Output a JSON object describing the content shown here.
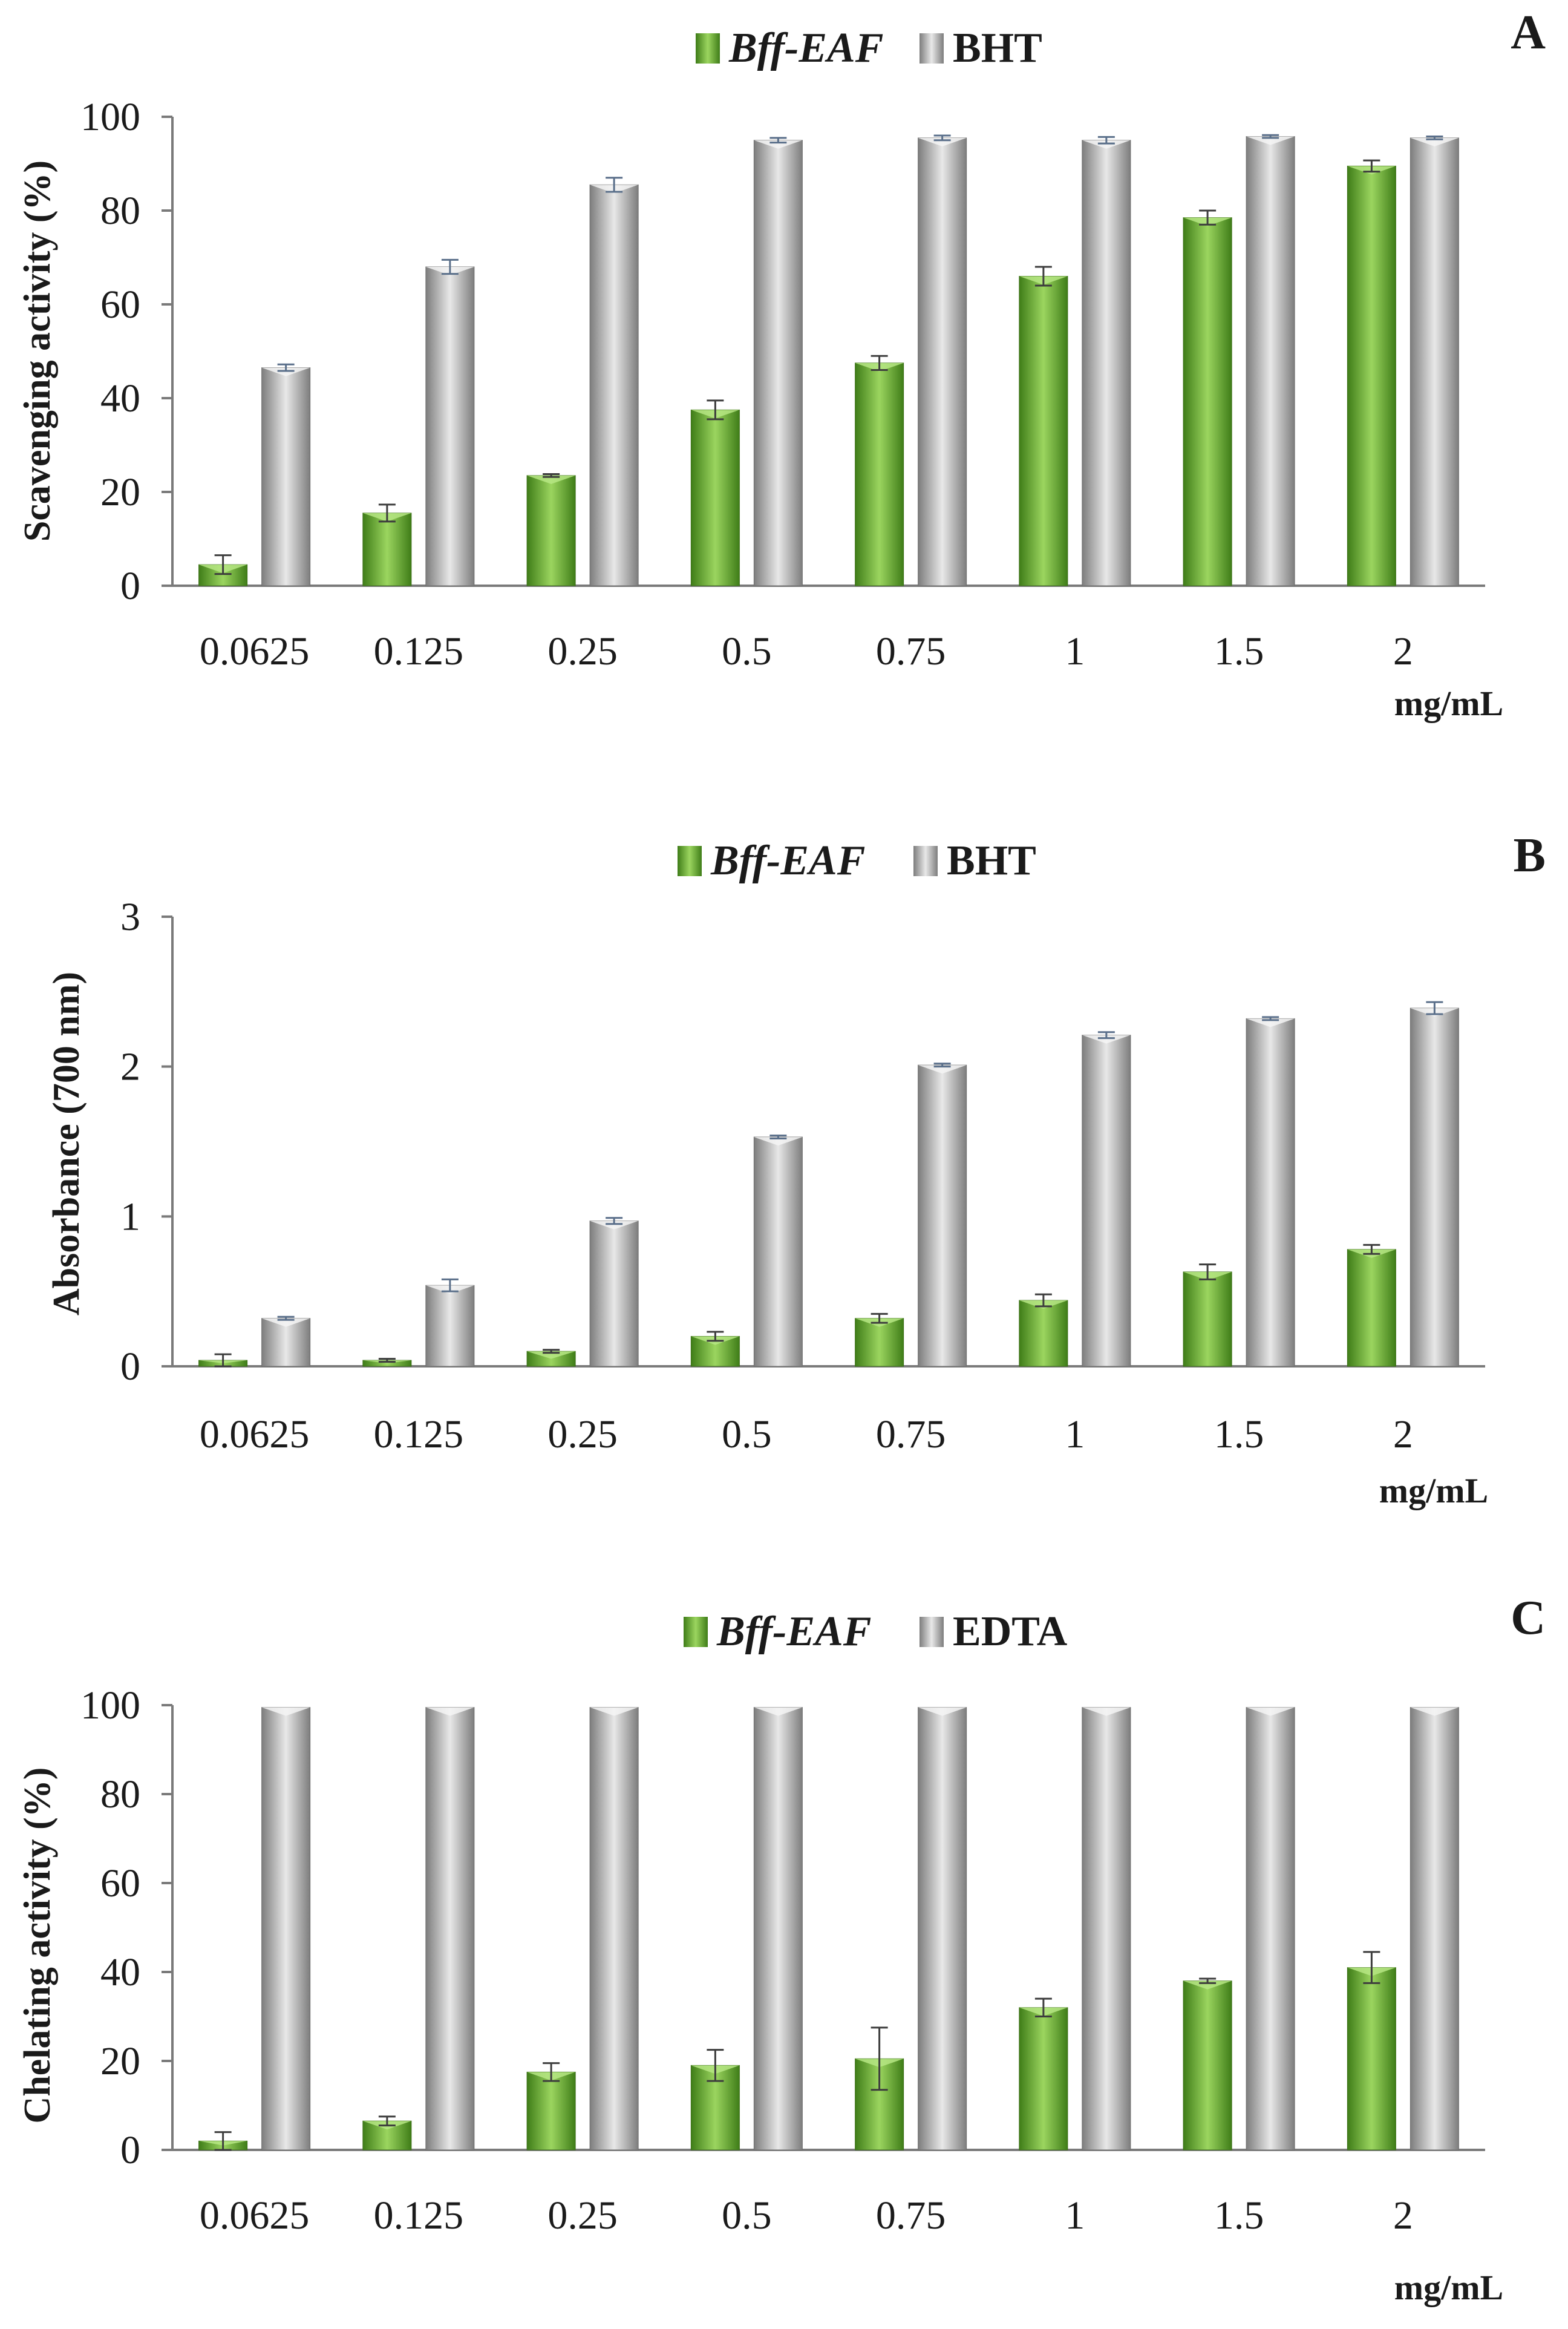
{
  "colors": {
    "green": "#6fb33a",
    "gray": "#b8b8b8",
    "axis": "#7a7a7a",
    "err": "#333333"
  },
  "chart_data": [
    {
      "type": "bar",
      "panel_label": "A",
      "categories": [
        "0.0625",
        "0.125",
        "0.25",
        "0.5",
        "0.75",
        "1",
        "1.5",
        "2"
      ],
      "x_unit": "mg/mL",
      "ylabel": "Scavenging activity (%)",
      "ylim": [
        0,
        100
      ],
      "yticks": [
        "0",
        "20",
        "40",
        "60",
        "80",
        "100"
      ],
      "legend_position": "top-center",
      "series": [
        {
          "name": "Bff-EAF",
          "values": [
            4.5,
            15.5,
            23.5,
            37.5,
            47.5,
            66,
            78.5,
            89.5
          ],
          "errors": [
            2,
            1.8,
            0.3,
            2,
            1.5,
            2,
            1.5,
            1.2
          ]
        },
        {
          "name": "BHT",
          "values": [
            46.5,
            68,
            85.5,
            95,
            95.5,
            95,
            95.8,
            95.5
          ],
          "errors": [
            0.7,
            1.5,
            1.5,
            0.5,
            0.5,
            0.7,
            0.3,
            0.3
          ]
        }
      ]
    },
    {
      "type": "bar",
      "panel_label": "B",
      "categories": [
        "0.0625",
        "0.125",
        "0.25",
        "0.5",
        "0.75",
        "1",
        "1.5",
        "2"
      ],
      "x_unit": "mg/mL",
      "ylabel": "Absorbance (700 nm)",
      "ylim": [
        0,
        3
      ],
      "yticks": [
        "0",
        "1",
        "2",
        "3"
      ],
      "legend_position": "top-center",
      "series": [
        {
          "name": "Bff-EAF",
          "values": [
            0.04,
            0.04,
            0.1,
            0.2,
            0.32,
            0.44,
            0.63,
            0.78
          ],
          "errors": [
            0.04,
            0.01,
            0.01,
            0.03,
            0.03,
            0.04,
            0.05,
            0.03
          ]
        },
        {
          "name": "BHT",
          "values": [
            0.32,
            0.54,
            0.97,
            1.53,
            2.01,
            2.21,
            2.32,
            2.39
          ],
          "errors": [
            0.01,
            0.04,
            0.02,
            0.01,
            0.01,
            0.02,
            0.01,
            0.04
          ]
        }
      ]
    },
    {
      "type": "bar",
      "panel_label": "C",
      "categories": [
        "0.0625",
        "0.125",
        "0.25",
        "0.5",
        "0.75",
        "1",
        "1.5",
        "2"
      ],
      "x_unit": "mg/mL",
      "ylabel": "Chelating activity (%)",
      "ylim": [
        0,
        100
      ],
      "yticks": [
        "0",
        "20",
        "40",
        "60",
        "80",
        "100"
      ],
      "legend_position": "top-center",
      "series": [
        {
          "name": "Bff-EAF",
          "values": [
            2,
            6.5,
            17.5,
            19,
            20.5,
            32,
            38,
            41
          ],
          "errors": [
            2,
            1,
            2,
            3.5,
            7,
            2,
            0.5,
            3.5
          ]
        },
        {
          "name": "EDTA",
          "values": [
            99.5,
            99.5,
            99.5,
            99.5,
            99.5,
            99.5,
            99.5,
            99.5
          ],
          "errors": [
            0,
            0,
            0,
            0,
            0,
            0,
            0,
            0
          ]
        }
      ]
    }
  ]
}
